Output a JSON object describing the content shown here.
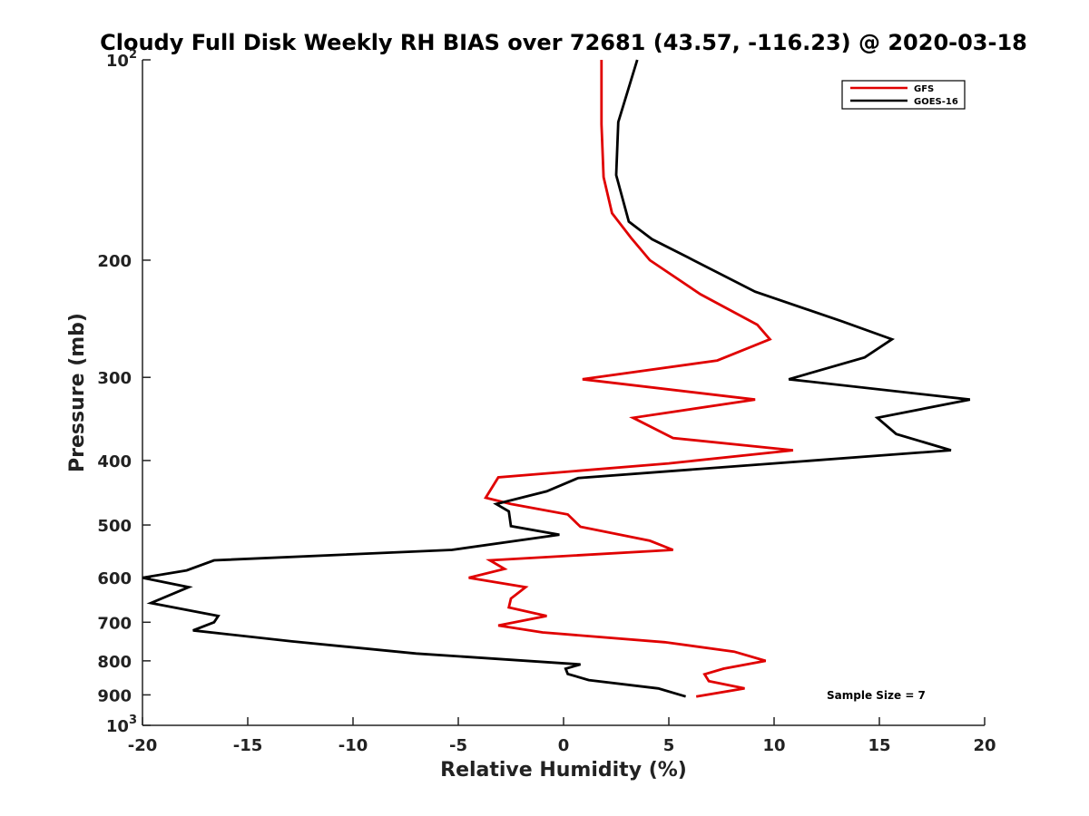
{
  "chart_data": {
    "type": "line",
    "title": "Cloudy Full Disk Weekly RH BIAS over 72681 (43.57, -116.23) @ 2020-03-18",
    "xlabel": "Relative Humidity (%)",
    "ylabel": "Pressure (mb)",
    "xlim": [
      -20,
      20
    ],
    "ylim": [
      100,
      1000
    ],
    "y_scale": "log",
    "y_reversed": true,
    "grid": false,
    "legend_position": "top-right",
    "x_ticks": [
      "-20",
      "-15",
      "-10",
      "-5",
      "0",
      "5",
      "10",
      "15",
      "20"
    ],
    "y_ticks": [
      {
        "value": 100,
        "base": "10",
        "exp": "2"
      },
      {
        "value": 200,
        "base": "200",
        "exp": ""
      },
      {
        "value": 300,
        "base": "300",
        "exp": ""
      },
      {
        "value": 400,
        "base": "400",
        "exp": ""
      },
      {
        "value": 500,
        "base": "500",
        "exp": ""
      },
      {
        "value": 600,
        "base": "600",
        "exp": ""
      },
      {
        "value": 700,
        "base": "700",
        "exp": ""
      },
      {
        "value": 800,
        "base": "800",
        "exp": ""
      },
      {
        "value": 900,
        "base": "900",
        "exp": ""
      },
      {
        "value": 1000,
        "base": "10",
        "exp": "3"
      }
    ],
    "annotation": "Sample Size = 7",
    "series": [
      {
        "name": "GFS",
        "color": "#e00000",
        "points": [
          [
            1.8,
            100
          ],
          [
            1.8,
            125
          ],
          [
            1.9,
            150
          ],
          [
            2.3,
            170
          ],
          [
            3.2,
            185
          ],
          [
            4.1,
            200
          ],
          [
            6.5,
            225
          ],
          [
            9.2,
            250
          ],
          [
            9.8,
            263
          ],
          [
            7.3,
            283
          ],
          [
            0.9,
            302
          ],
          [
            9.1,
            324
          ],
          [
            3.3,
            345
          ],
          [
            5.2,
            370
          ],
          [
            10.9,
            386
          ],
          [
            5.0,
            404
          ],
          [
            -3.1,
            424
          ],
          [
            -3.7,
            455
          ],
          [
            -2.5,
            465
          ],
          [
            0.2,
            482
          ],
          [
            0.8,
            503
          ],
          [
            4.1,
            528
          ],
          [
            5.2,
            545
          ],
          [
            -3.5,
            565
          ],
          [
            -2.8,
            582
          ],
          [
            -4.5,
            600
          ],
          [
            -1.8,
            620
          ],
          [
            -2.5,
            645
          ],
          [
            -2.6,
            665
          ],
          [
            -0.8,
            685
          ],
          [
            -3.1,
            708
          ],
          [
            -1.0,
            725
          ],
          [
            4.8,
            750
          ],
          [
            8.1,
            775
          ],
          [
            9.6,
            800
          ],
          [
            7.6,
            822
          ],
          [
            6.7,
            838
          ],
          [
            6.9,
            858
          ],
          [
            8.6,
            880
          ],
          [
            6.3,
            905
          ]
        ]
      },
      {
        "name": "GOES-16",
        "color": "#000000",
        "points": [
          [
            3.5,
            100
          ],
          [
            2.6,
            124
          ],
          [
            2.5,
            149
          ],
          [
            3.1,
            175
          ],
          [
            4.2,
            186
          ],
          [
            5.9,
            198
          ],
          [
            9.1,
            223
          ],
          [
            13.2,
            247
          ],
          [
            15.6,
            263
          ],
          [
            14.3,
            280
          ],
          [
            10.7,
            302
          ],
          [
            19.3,
            324
          ],
          [
            14.9,
            345
          ],
          [
            15.8,
            365
          ],
          [
            18.4,
            386
          ],
          [
            10.0,
            404
          ],
          [
            0.7,
            425
          ],
          [
            -0.8,
            445
          ],
          [
            -3.2,
            465
          ],
          [
            -2.6,
            477
          ],
          [
            -2.5,
            502
          ],
          [
            -0.2,
            517
          ],
          [
            -5.3,
            545
          ],
          [
            -16.6,
            565
          ],
          [
            -17.9,
            585
          ],
          [
            -20.0,
            600
          ],
          [
            -17.8,
            620
          ],
          [
            -19.6,
            655
          ],
          [
            -16.4,
            685
          ],
          [
            -16.6,
            700
          ],
          [
            -17.6,
            720
          ],
          [
            -12.9,
            748
          ],
          [
            -7.0,
            780
          ],
          [
            0.8,
            810
          ],
          [
            0.1,
            822
          ],
          [
            0.2,
            837
          ],
          [
            1.2,
            855
          ],
          [
            4.5,
            880
          ],
          [
            5.8,
            905
          ]
        ]
      }
    ]
  }
}
